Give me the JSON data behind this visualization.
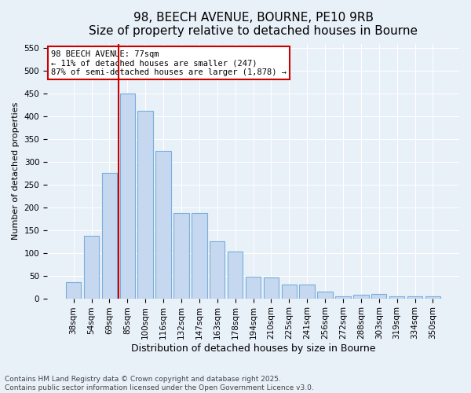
{
  "title1": "98, BEECH AVENUE, BOURNE, PE10 9RB",
  "title2": "Size of property relative to detached houses in Bourne",
  "xlabel": "Distribution of detached houses by size in Bourne",
  "ylabel": "Number of detached properties",
  "categories": [
    "38sqm",
    "54sqm",
    "69sqm",
    "85sqm",
    "100sqm",
    "116sqm",
    "132sqm",
    "147sqm",
    "163sqm",
    "178sqm",
    "194sqm",
    "210sqm",
    "225sqm",
    "241sqm",
    "256sqm",
    "272sqm",
    "288sqm",
    "303sqm",
    "319sqm",
    "334sqm",
    "350sqm"
  ],
  "values": [
    35,
    137,
    275,
    450,
    412,
    325,
    188,
    188,
    125,
    103,
    47,
    46,
    30,
    30,
    15,
    5,
    8,
    10,
    5,
    4,
    4
  ],
  "bar_color": "#c5d8f0",
  "bar_edge_color": "#7aaedb",
  "vline_pos": 2.5,
  "vline_color": "#cc0000",
  "annotation_line1": "98 BEECH AVENUE: 77sqm",
  "annotation_line2": "← 11% of detached houses are smaller (247)",
  "annotation_line3": "87% of semi-detached houses are larger (1,878) →",
  "annotation_box_color": "#ffffff",
  "annotation_box_edge": "#cc0000",
  "ylim": [
    0,
    560
  ],
  "yticks": [
    0,
    50,
    100,
    150,
    200,
    250,
    300,
    350,
    400,
    450,
    500,
    550
  ],
  "background_color": "#e8f0f8",
  "footer1": "Contains HM Land Registry data © Crown copyright and database right 2025.",
  "footer2": "Contains public sector information licensed under the Open Government Licence v3.0.",
  "title1_fontsize": 11,
  "title2_fontsize": 10,
  "xlabel_fontsize": 9,
  "ylabel_fontsize": 8,
  "tick_fontsize": 7.5,
  "annotation_fontsize": 7.5,
  "footer_fontsize": 6.5
}
